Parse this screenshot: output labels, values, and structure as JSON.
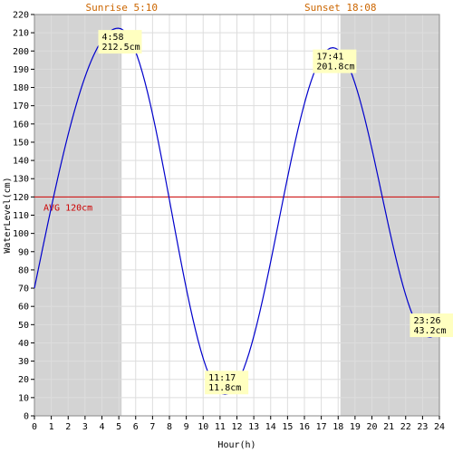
{
  "chart_data": {
    "type": "line",
    "xlabel": "Hour(h)",
    "ylabel": "WaterLevel(cm)",
    "xlim": [
      0,
      24
    ],
    "ylim": [
      0,
      220
    ],
    "x_ticks": [
      0,
      1,
      2,
      3,
      4,
      5,
      6,
      7,
      8,
      9,
      10,
      11,
      12,
      13,
      14,
      15,
      16,
      17,
      18,
      19,
      20,
      21,
      22,
      23,
      24
    ],
    "y_ticks": [
      0,
      10,
      20,
      30,
      40,
      50,
      60,
      70,
      80,
      90,
      100,
      110,
      120,
      130,
      140,
      150,
      160,
      170,
      180,
      190,
      200,
      210,
      220
    ],
    "grid": true,
    "sunrise": {
      "label": "Sunrise 5:10",
      "hour": 5.1667
    },
    "sunset": {
      "label": "Sunset 18:08",
      "hour": 18.1333
    },
    "average": {
      "label": "AVG 120cm",
      "value": 120
    },
    "extremes": [
      {
        "time": "4:58",
        "level": "212.5cm",
        "hour": 4.967,
        "value": 212.5
      },
      {
        "time": "11:17",
        "level": "11.8cm",
        "hour": 11.283,
        "value": 11.8
      },
      {
        "time": "17:41",
        "level": "201.8cm",
        "hour": 17.683,
        "value": 201.8
      },
      {
        "time": "23:26",
        "level": "43.2cm",
        "hour": 23.433,
        "value": 43.2
      }
    ],
    "series": [
      {
        "color": "#0000cc",
        "x": [
          0,
          4.967,
          11.283,
          17.683,
          23.433,
          24
        ],
        "y": [
          70,
          212.5,
          11.8,
          201.8,
          43.2,
          47
        ]
      }
    ],
    "colors": {
      "night_shade": "#d3d3d3",
      "grid": "#dddddd",
      "avg_line": "#cc0000",
      "label_box": "#ffffc0"
    }
  }
}
